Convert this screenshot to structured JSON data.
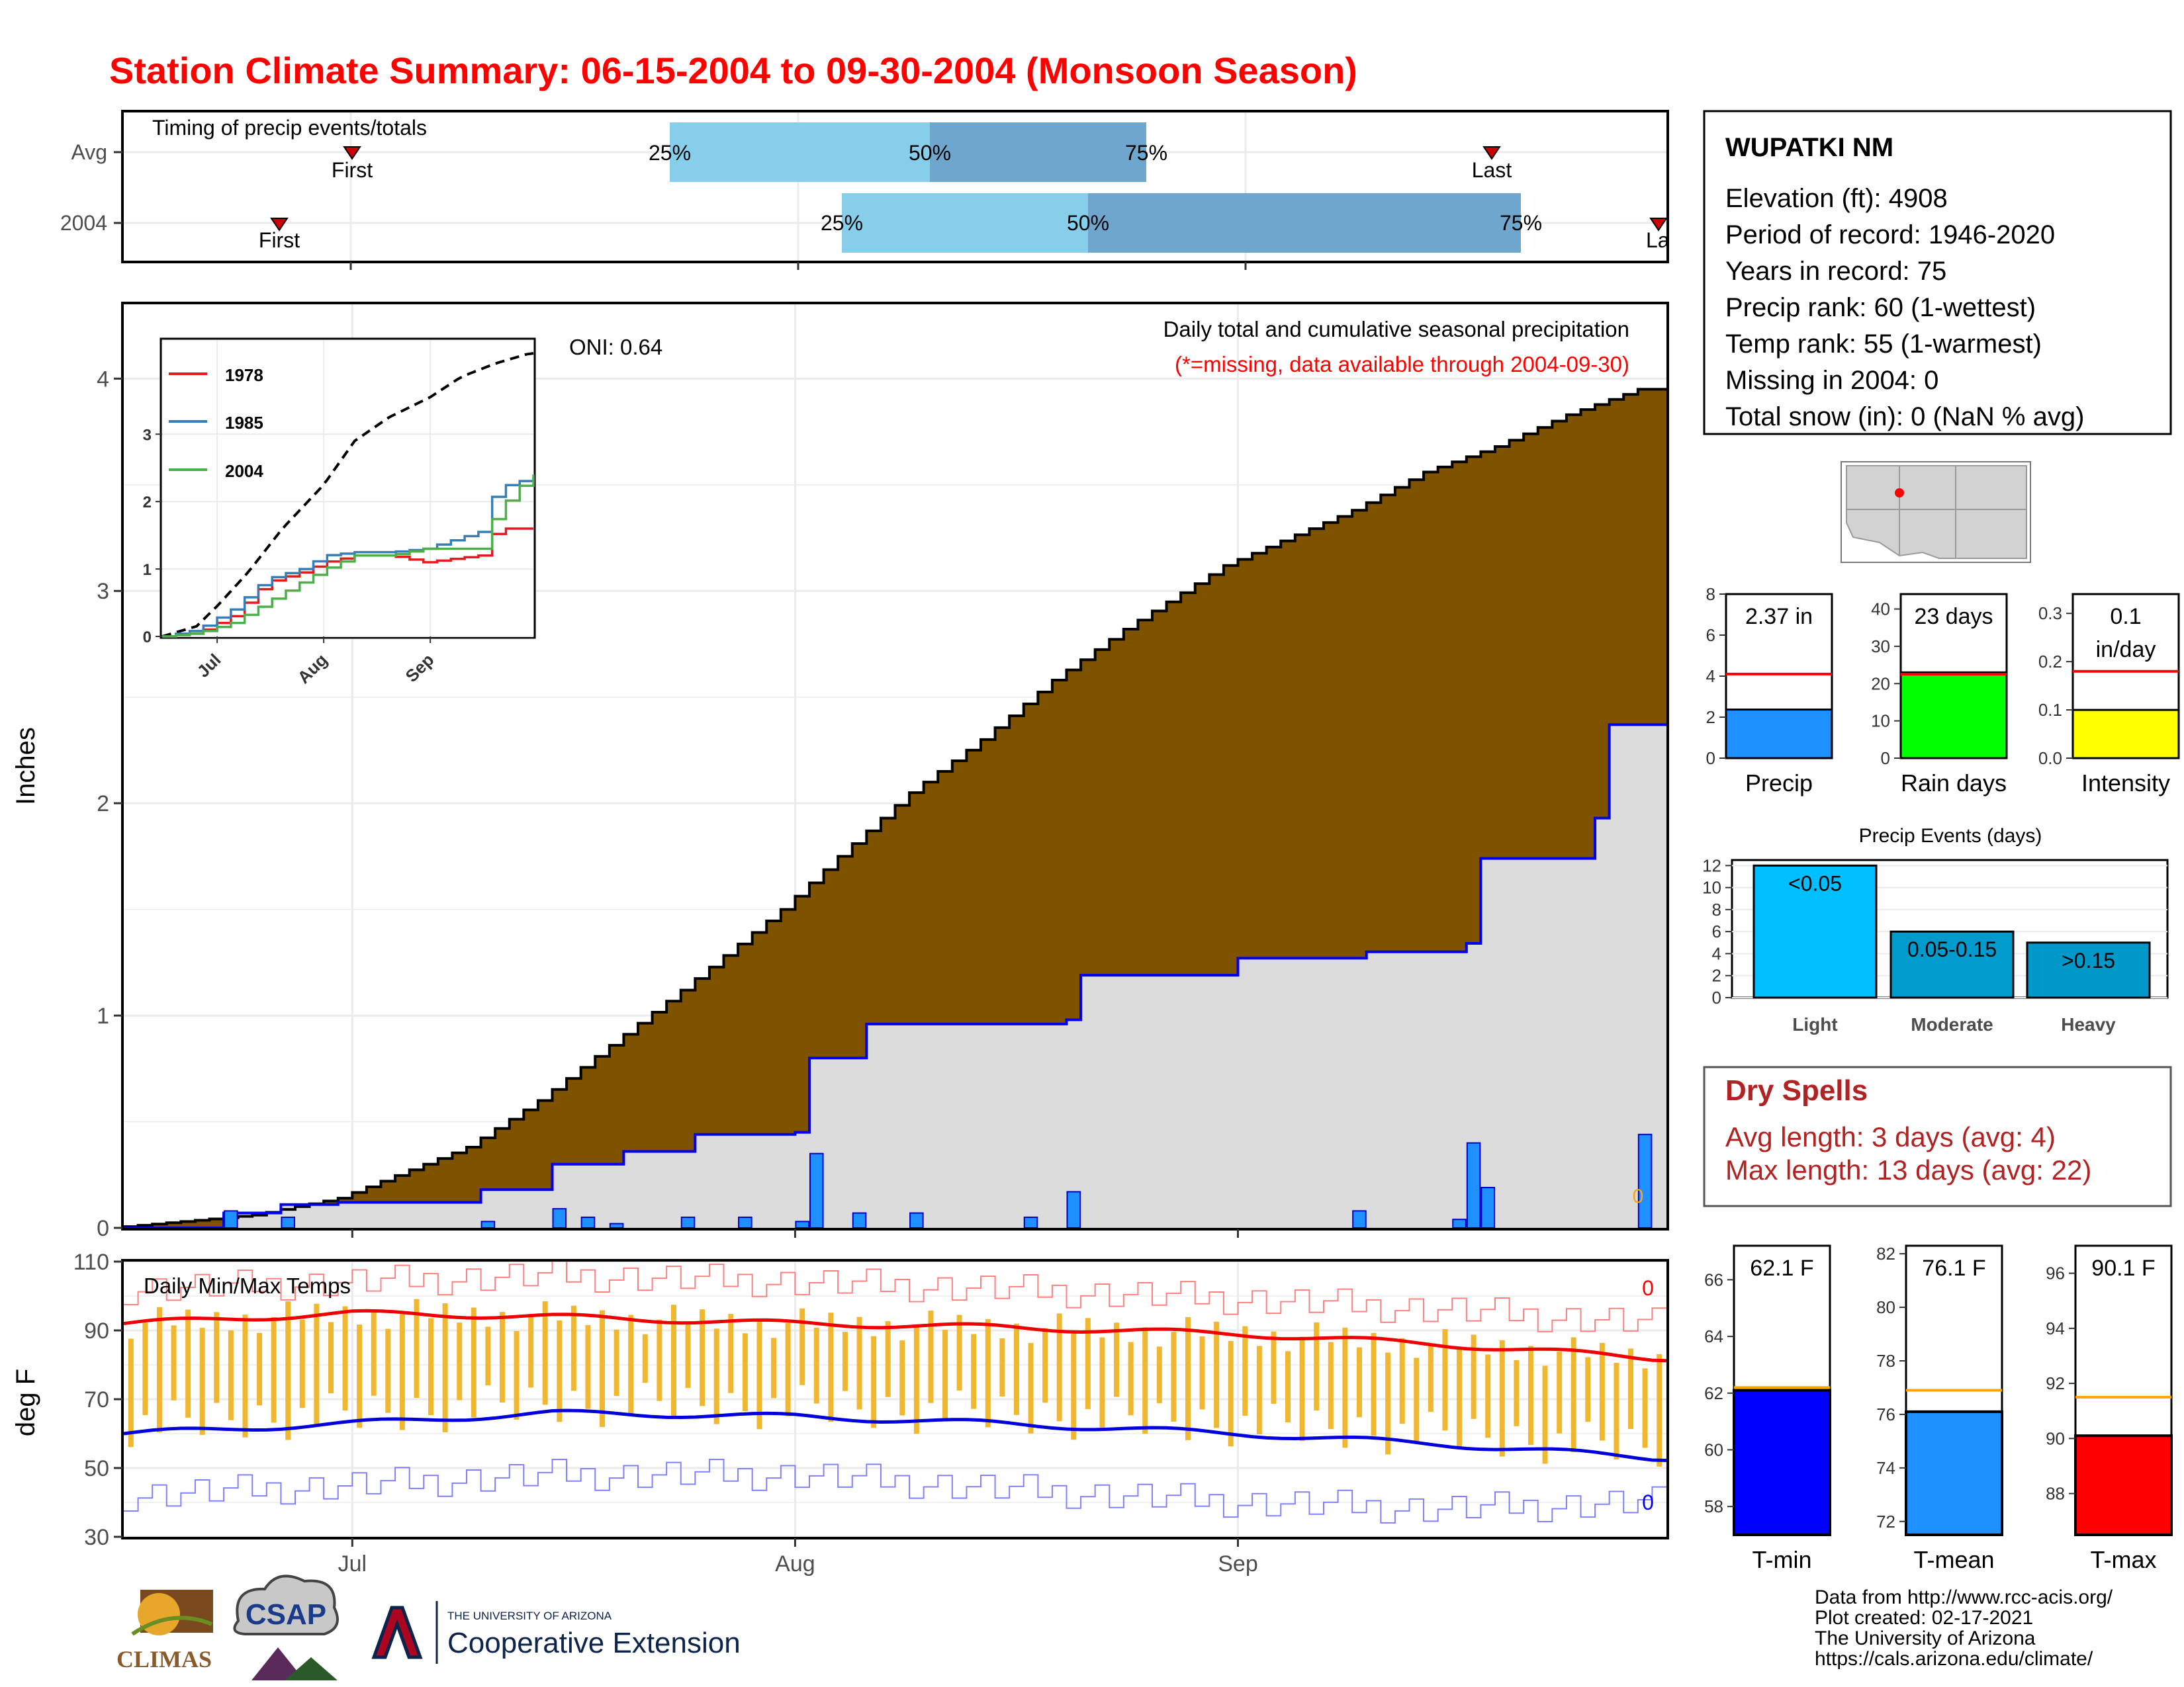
{
  "title": "Station Climate Summary: 06-15-2004 to 09-30-2004 (Monsoon Season)",
  "colors": {
    "title": "#ff0000",
    "brown": "#7f5200",
    "gray_fill": "#dcdcdc",
    "avg_line": "#0000ee",
    "precip_bar": "#1e90ff",
    "light_blue": "#87ceeb",
    "dark_blue": "#6ea6cd",
    "tmin": "#0000ff",
    "tmean": "#1e90ff",
    "tmax": "#ff0000",
    "rain_days": "#00ff00",
    "intensity": "#ffff00",
    "temp_bar": "#f0b830",
    "dry_spells": "#b22222"
  },
  "timing": {
    "caption": "Timing of precip events/totals",
    "rows": [
      {
        "label": "Avg",
        "first": "First",
        "last": "Last",
        "p25": "25%",
        "p50": "50%",
        "p75": "75%"
      },
      {
        "label": "2004",
        "first": "First",
        "last": "Last",
        "p25": "25%",
        "p50": "50%",
        "p75": "75%"
      }
    ]
  },
  "station": {
    "name": "WUPATKI NM",
    "lines": [
      "Elevation (ft): 4908",
      "Period of record: 1946-2020",
      "Years in record: 75",
      "Precip rank: 60 (1-wettest)",
      "Temp rank: 55 (1-warmest)",
      "Missing in 2004: 0",
      "Total snow (in): 0 (NaN % avg)"
    ]
  },
  "precip_panel": {
    "ylabel": "Inches",
    "oni": "ONI: 0.64",
    "caption": "Daily total and cumulative seasonal precipitation",
    "missing_note": "(*=missing, data available through 2004-09-30)",
    "missing_marker": "0",
    "y_ticks": [
      "0",
      "1",
      "2",
      "3",
      "4"
    ],
    "x_ticks": [
      "Jul",
      "Aug",
      "Sep"
    ]
  },
  "inset": {
    "legend": [
      "1978",
      "1985",
      "2004"
    ],
    "y_ticks": [
      "0",
      "1",
      "2",
      "3"
    ],
    "x_ticks": [
      "Jul",
      "Aug",
      "Sep"
    ]
  },
  "temp_panel": {
    "ylabel": "deg F",
    "caption": "Daily Min/Max Temps",
    "y_ticks": [
      "30",
      "50",
      "70",
      "90",
      "110"
    ],
    "x_ticks": [
      "Jul",
      "Aug",
      "Sep"
    ],
    "record_high_count": "0",
    "record_low_count": "0"
  },
  "summary_bars": [
    {
      "label": "Precip",
      "value_text": "2.37 in",
      "ticks": [
        "0",
        "2",
        "4",
        "6",
        "8"
      ]
    },
    {
      "label": "Rain days",
      "value_text": "23 days",
      "ticks": [
        "0",
        "10",
        "20",
        "30",
        "40"
      ]
    },
    {
      "label": "Intensity",
      "value_text": "0.1 in/day",
      "value_line1": "0.1",
      "value_line2": "in/day",
      "ticks": [
        "0.0",
        "0.1",
        "0.2",
        "0.3"
      ]
    }
  ],
  "events": {
    "title": "Precip Events (days)",
    "y_ticks": [
      "0",
      "2",
      "4",
      "6",
      "8",
      "10",
      "12"
    ],
    "bars": [
      {
        "label": "Light",
        "text": "<0.05"
      },
      {
        "label": "Moderate",
        "text": "0.05-0.15"
      },
      {
        "label": "Heavy",
        "text": ">0.15"
      }
    ]
  },
  "dry_spells": {
    "title": "Dry Spells",
    "avg_line": "Avg length: 3 days (avg: 4)",
    "max_line": "Max length: 13 days (avg: 22)"
  },
  "temp_summary": [
    {
      "label": "T-min",
      "value_text": "62.1 F",
      "ticks": [
        "58",
        "60",
        "62",
        "64",
        "66"
      ]
    },
    {
      "label": "T-mean",
      "value_text": "76.1 F",
      "ticks": [
        "72",
        "74",
        "76",
        "78",
        "80",
        "82"
      ]
    },
    {
      "label": "T-max",
      "value_text": "90.1 F",
      "ticks": [
        "88",
        "90",
        "92",
        "94",
        "96"
      ]
    }
  ],
  "footer": {
    "lines": [
      "Data from http://www.rcc-acis.org/",
      "Plot created: 02-17-2021",
      "The University of Arizona",
      "https://cals.arizona.edu/climate/"
    ],
    "logo_climas": "CLIMAS",
    "logo_csap": "CSAP",
    "logo_ua_small": "THE UNIVERSITY OF ARIZONA",
    "logo_ua_big": "Cooperative Extension"
  },
  "chart_data": [
    {
      "type": "area",
      "title": "Daily total and cumulative seasonal precipitation",
      "xlabel": "",
      "ylabel": "Inches",
      "x_range": [
        "2004-06-15",
        "2004-09-30"
      ],
      "ylim": [
        0,
        4.35
      ],
      "series": [
        {
          "name": "avg_cumulative",
          "x": [
            "2004-06-15",
            "2004-06-25",
            "2004-07-01",
            "2004-07-10",
            "2004-07-15",
            "2004-07-20",
            "2004-07-25",
            "2004-08-01",
            "2004-08-05",
            "2004-08-10",
            "2004-08-15",
            "2004-08-20",
            "2004-08-25",
            "2004-09-01",
            "2004-09-10",
            "2004-09-15",
            "2004-09-20",
            "2004-09-25",
            "2004-09-30"
          ],
          "values": [
            0,
            0.06,
            0.14,
            0.38,
            0.6,
            0.86,
            1.12,
            1.5,
            1.75,
            2.05,
            2.3,
            2.58,
            2.82,
            3.12,
            3.38,
            3.56,
            3.68,
            3.83,
            3.95
          ]
        },
        {
          "name": "2004_cumulative",
          "x": [
            "2004-06-15",
            "2004-06-22",
            "2004-06-26",
            "2004-06-30",
            "2004-07-10",
            "2004-07-15",
            "2004-07-20",
            "2004-07-25",
            "2004-08-01",
            "2004-08-02",
            "2004-08-06",
            "2004-08-20",
            "2004-08-21",
            "2004-09-01",
            "2004-09-10",
            "2004-09-17",
            "2004-09-18",
            "2004-09-26",
            "2004-09-27",
            "2004-09-30"
          ],
          "values": [
            0,
            0.07,
            0.11,
            0.12,
            0.18,
            0.3,
            0.36,
            0.44,
            0.45,
            0.8,
            0.96,
            0.98,
            1.19,
            1.27,
            1.3,
            1.34,
            1.74,
            1.93,
            2.37,
            2.37
          ]
        },
        {
          "name": "2004_daily",
          "x": [
            "2004-06-22",
            "2004-06-26",
            "2004-07-10",
            "2004-07-15",
            "2004-07-17",
            "2004-07-19",
            "2004-07-24",
            "2004-07-28",
            "2004-08-01",
            "2004-08-02",
            "2004-08-05",
            "2004-08-09",
            "2004-08-17",
            "2004-08-20",
            "2004-09-09",
            "2004-09-16",
            "2004-09-17",
            "2004-09-18",
            "2004-09-29"
          ],
          "values": [
            0.08,
            0.05,
            0.03,
            0.09,
            0.05,
            0.02,
            0.05,
            0.05,
            0.03,
            0.35,
            0.07,
            0.07,
            0.05,
            0.17,
            0.08,
            0.04,
            0.4,
            0.19,
            0.44
          ]
        }
      ]
    },
    {
      "type": "line",
      "title": "",
      "x_range": [
        "2004-06-15",
        "2004-09-30"
      ],
      "ylim": [
        0,
        4.2
      ],
      "series": [
        {
          "name": "avg",
          "x": [
            "2004-06-15",
            "2004-06-25",
            "2004-07-01",
            "2004-07-10",
            "2004-07-20",
            "2004-08-01",
            "2004-08-10",
            "2004-08-20",
            "2004-09-01",
            "2004-09-10",
            "2004-09-20",
            "2004-09-30"
          ],
          "values": [
            0,
            0.15,
            0.45,
            0.95,
            1.6,
            2.25,
            2.9,
            3.25,
            3.55,
            3.85,
            4.05,
            4.2
          ]
        },
        {
          "name": "1978",
          "x": [
            "2004-06-15",
            "2004-06-25",
            "2004-07-05",
            "2004-07-15",
            "2004-07-25",
            "2004-08-01",
            "2004-08-10",
            "2004-08-20",
            "2004-08-30",
            "2004-09-15",
            "2004-09-20",
            "2004-09-30"
          ],
          "values": [
            0,
            0.05,
            0.3,
            0.8,
            0.95,
            1.1,
            1.2,
            1.2,
            1.1,
            1.2,
            1.6,
            1.6
          ]
        },
        {
          "name": "1985",
          "x": [
            "2004-06-15",
            "2004-06-25",
            "2004-07-05",
            "2004-07-15",
            "2004-07-25",
            "2004-08-01",
            "2004-08-10",
            "2004-08-20",
            "2004-08-30",
            "2004-09-15",
            "2004-09-20",
            "2004-09-30"
          ],
          "values": [
            0,
            0.1,
            0.4,
            0.85,
            1.0,
            1.2,
            1.25,
            1.25,
            1.3,
            1.55,
            2.2,
            2.35
          ]
        },
        {
          "name": "2004",
          "x": [
            "2004-06-15",
            "2004-06-25",
            "2004-07-05",
            "2004-07-15",
            "2004-07-25",
            "2004-08-01",
            "2004-08-10",
            "2004-08-20",
            "2004-08-30",
            "2004-09-15",
            "2004-09-20",
            "2004-09-30"
          ],
          "values": [
            0,
            0.05,
            0.2,
            0.5,
            0.8,
            1.0,
            1.2,
            1.2,
            1.3,
            1.3,
            1.85,
            2.4
          ]
        }
      ]
    },
    {
      "type": "bar",
      "title": "Daily Min/Max Temps",
      "ylabel": "deg F",
      "x_range": [
        "2004-06-15",
        "2004-09-30"
      ],
      "ylim": [
        30,
        110
      ],
      "series": [
        {
          "name": "avg_tmax",
          "x": [
            "2004-06-15",
            "2004-07-01",
            "2004-07-15",
            "2004-08-01",
            "2004-08-15",
            "2004-09-01",
            "2004-09-15",
            "2004-09-30"
          ],
          "values": [
            92,
            95,
            94,
            92,
            91,
            89,
            86,
            82
          ]
        },
        {
          "name": "avg_tmin",
          "x": [
            "2004-06-15",
            "2004-07-01",
            "2004-07-15",
            "2004-08-01",
            "2004-08-15",
            "2004-09-01",
            "2004-09-15",
            "2004-09-30"
          ],
          "values": [
            60,
            63,
            66,
            65,
            63,
            60,
            57,
            53
          ]
        },
        {
          "name": "record_high",
          "x": [
            "2004-06-15",
            "2004-07-01",
            "2004-07-15",
            "2004-08-01",
            "2004-08-15",
            "2004-09-01",
            "2004-09-15",
            "2004-09-30"
          ],
          "values": [
            102,
            104,
            106,
            104,
            102,
            99,
            96,
            92
          ]
        },
        {
          "name": "record_low",
          "x": [
            "2004-06-15",
            "2004-07-01",
            "2004-07-15",
            "2004-08-01",
            "2004-08-15",
            "2004-09-01",
            "2004-09-15",
            "2004-09-30"
          ],
          "values": [
            42,
            45,
            48,
            48,
            44,
            40,
            38,
            40
          ]
        }
      ]
    },
    {
      "type": "bar",
      "title": "",
      "categories": [
        "Precip",
        "Rain days",
        "Intensity"
      ],
      "values": [
        2.37,
        23,
        0.1
      ],
      "averages": [
        4.1,
        22.5,
        0.18
      ]
    },
    {
      "type": "bar",
      "title": "Precip Events (days)",
      "categories": [
        "Light",
        "Moderate",
        "Heavy"
      ],
      "values": [
        12,
        6,
        5
      ],
      "ylim": [
        0,
        12.5
      ]
    },
    {
      "type": "bar",
      "title": "",
      "categories": [
        "T-min",
        "T-mean",
        "T-max"
      ],
      "values": [
        62.1,
        76.1,
        90.1
      ],
      "averages": [
        62.2,
        76.9,
        91.5
      ]
    }
  ]
}
